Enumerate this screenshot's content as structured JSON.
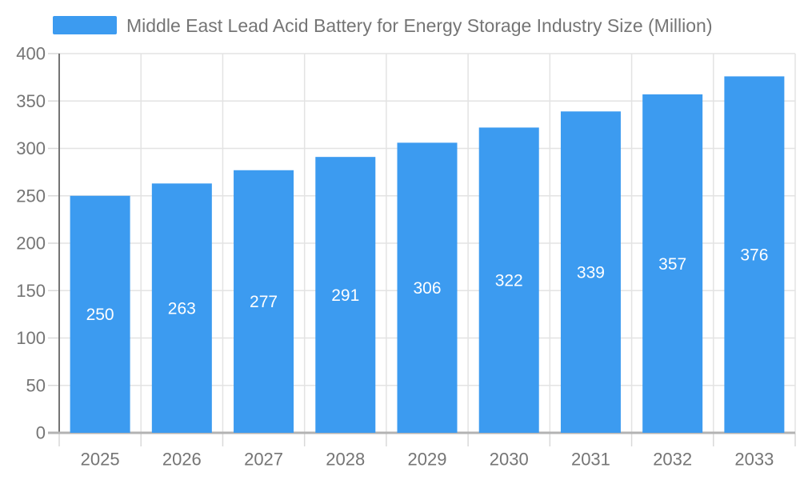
{
  "chart_data": {
    "type": "bar",
    "title": "Middle East Lead Acid Battery for Energy Storage Industry Size (Million)",
    "categories": [
      "2025",
      "2026",
      "2027",
      "2028",
      "2029",
      "2030",
      "2031",
      "2032",
      "2033"
    ],
    "values": [
      250,
      263,
      277,
      291,
      306,
      322,
      339,
      357,
      376
    ],
    "xlabel": "",
    "ylabel": "",
    "ylim": [
      0,
      400
    ],
    "ytick_step": 50,
    "grid": true,
    "legend_position": "top",
    "value_labels": "inside-middle",
    "colors": {
      "bar": "#3C9BF0",
      "grid_line": "#e3e3e3",
      "tick_line": "#d9d9d9",
      "x_axis_line": "#b3b3b3",
      "y_axis_line": "#747474",
      "axis_text": "#757575",
      "value_text": "#ffffff",
      "background": "#ffffff"
    }
  }
}
